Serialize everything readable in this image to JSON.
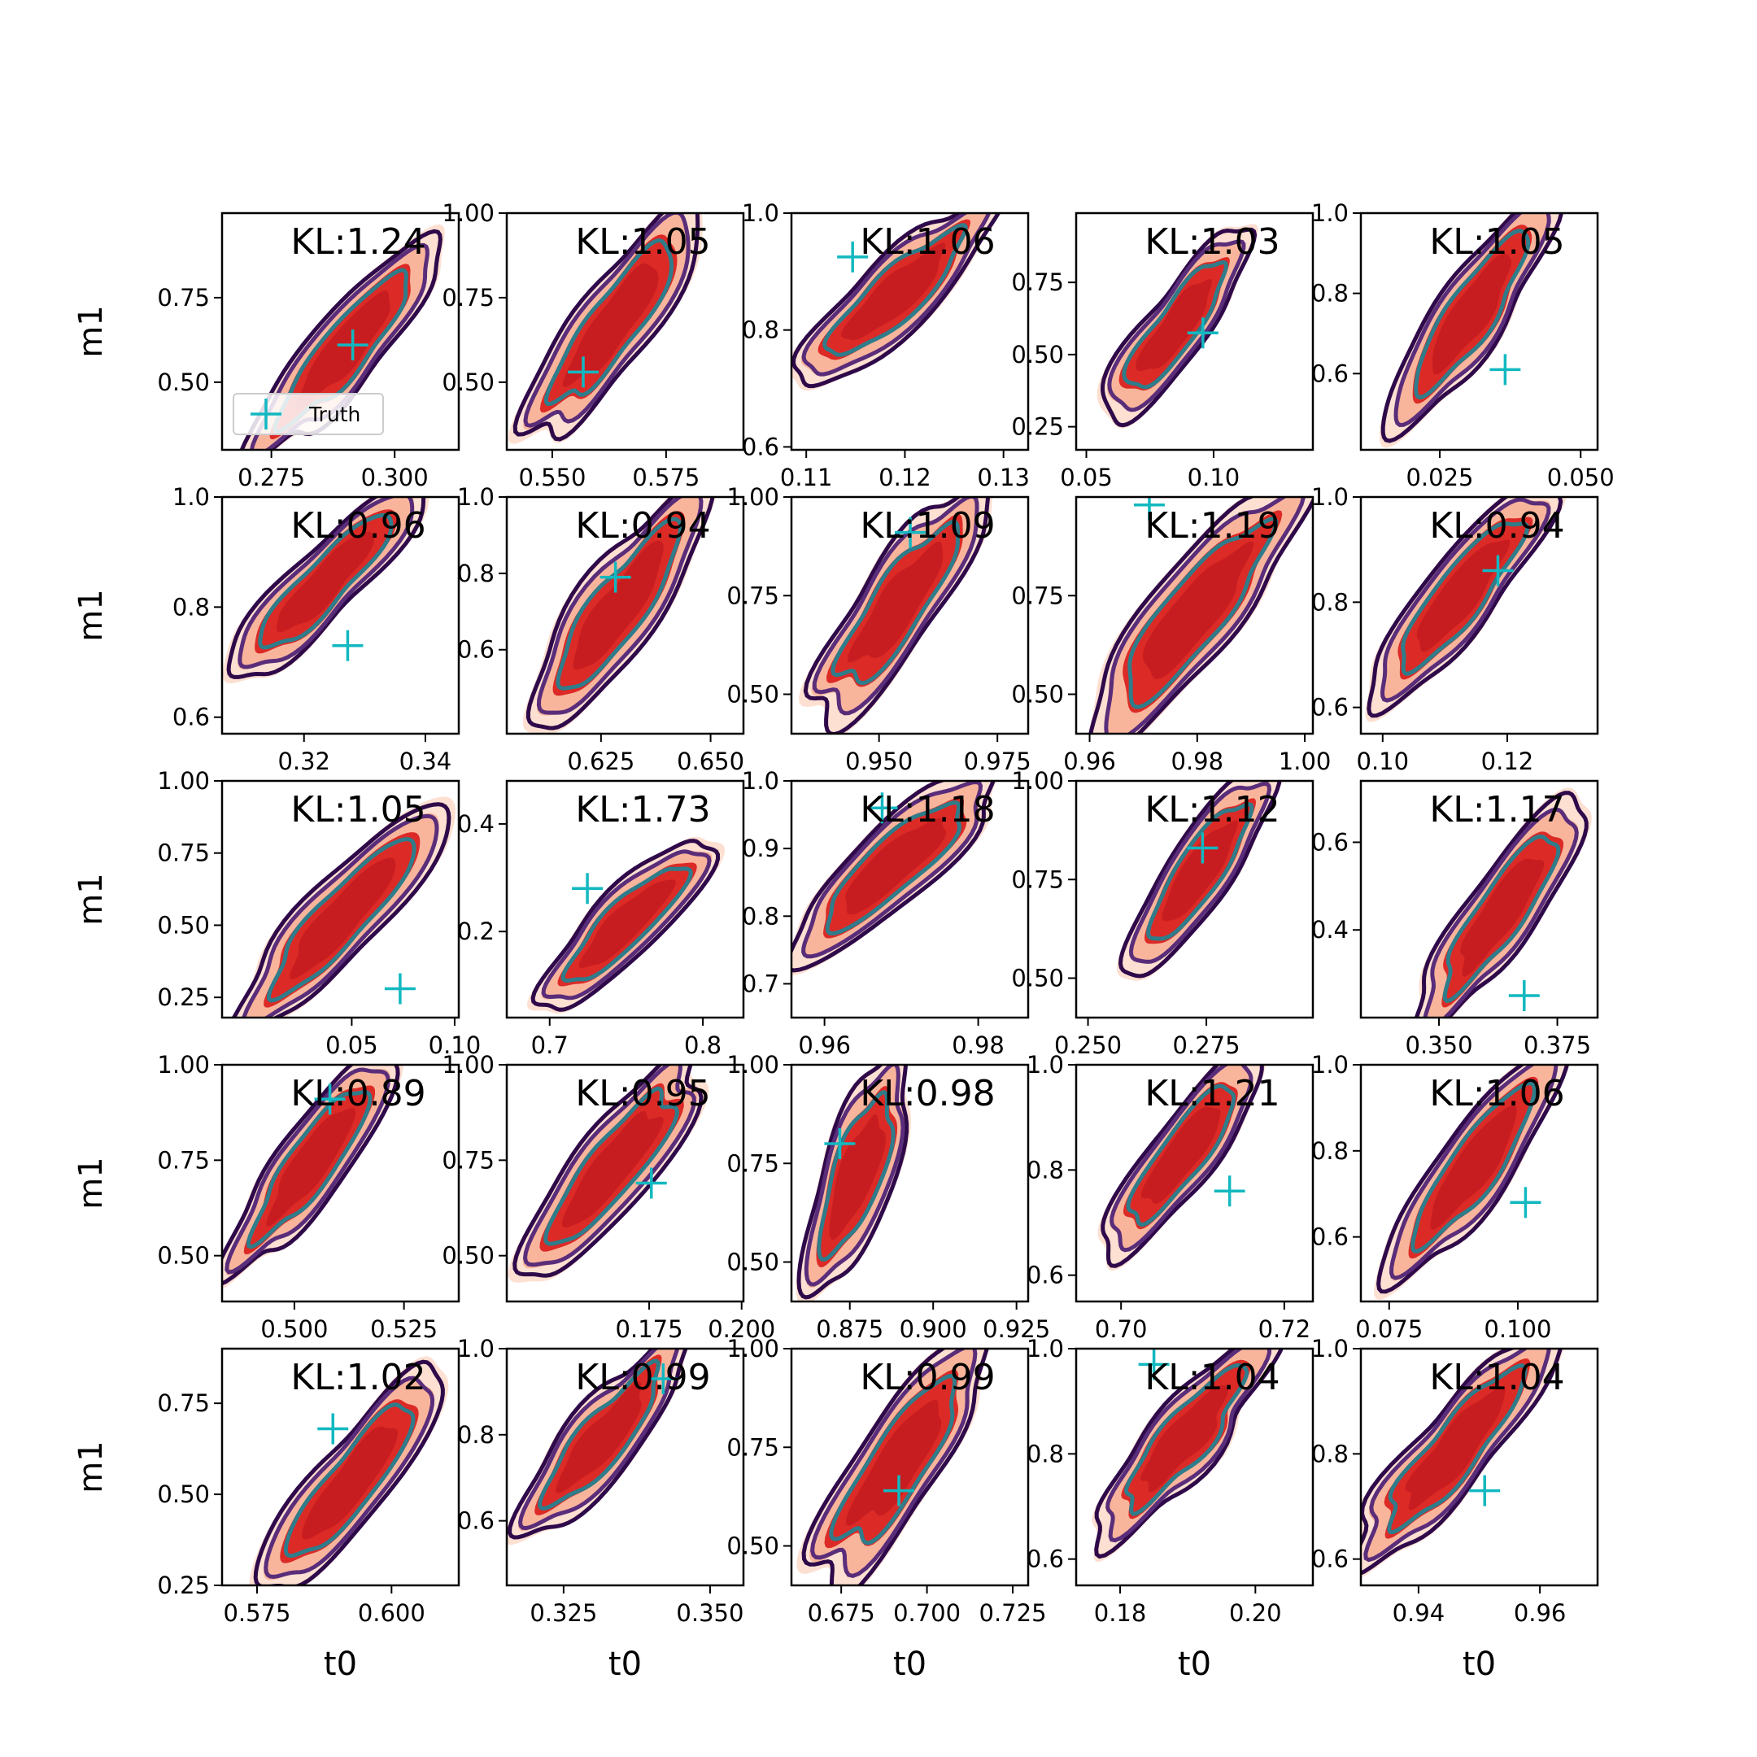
{
  "colors": {
    "fill_outer": "#fde0d2",
    "fill_mid": "#f9b59c",
    "fill_inner": "#dc2a26",
    "fill_core": "#c81d20",
    "line_outer": "#2f0a4a",
    "line_mid": "#5a2d7a",
    "line_inner": "#2f7c8a",
    "truth": "#12b8c0"
  },
  "chart_data": {
    "type": "contour-grid",
    "rows": 5,
    "cols": 5,
    "xlabel": "t0",
    "ylabel": "m1",
    "legend": {
      "label": "Truth",
      "placement": "lower-left",
      "marker": "+"
    },
    "panels": [
      {
        "kl": "KL:1.24",
        "xlim": [
          0.265,
          0.313
        ],
        "ylim": [
          0.3,
          1.0
        ],
        "xticks": [
          "0.275",
          "0.300"
        ],
        "xtick_vals": [
          0.275,
          0.3
        ],
        "yticks": [
          "0.50",
          "0.75"
        ],
        "ytick_vals": [
          0.5,
          0.75
        ],
        "truth": [
          0.2915,
          0.61
        ],
        "bounds": {
          "x": [
            0.274,
            0.306
          ],
          "y": [
            0.32,
            0.88
          ]
        }
      },
      {
        "kl": "KL:1.05",
        "xlim": [
          0.54,
          0.592
        ],
        "ylim": [
          0.3,
          1.0
        ],
        "xticks": [
          "0.550",
          "0.575"
        ],
        "xtick_vals": [
          0.55,
          0.575
        ],
        "yticks": [
          "0.50",
          "0.75",
          "1.00"
        ],
        "ytick_vals": [
          0.5,
          0.75,
          1.0
        ],
        "truth": [
          0.5568,
          0.53
        ],
        "bounds": {
          "x": [
            0.547,
            0.58
          ],
          "y": [
            0.36,
            0.99
          ]
        }
      },
      {
        "kl": "KL:1.06",
        "xlim": [
          0.1085,
          0.1325
        ],
        "ylim": [
          0.595,
          1.0
        ],
        "xticks": [
          "0.11",
          "0.12",
          "0.13"
        ],
        "xtick_vals": [
          0.11,
          0.12,
          0.13
        ],
        "yticks": [
          "0.6",
          "0.8",
          "1.0"
        ],
        "ytick_vals": [
          0.6,
          0.8,
          1.0
        ],
        "truth": [
          0.1147,
          0.925
        ],
        "bounds": {
          "x": [
            0.11,
            0.128
          ],
          "y": [
            0.72,
            1.0
          ]
        }
      },
      {
        "kl": "KL:1.03",
        "xlim": [
          0.046,
          0.139
        ],
        "ylim": [
          0.17,
          0.99
        ],
        "xticks": [
          "0.05",
          "0.10"
        ],
        "xtick_vals": [
          0.05,
          0.1
        ],
        "yticks": [
          "0.25",
          "0.50",
          "0.75"
        ],
        "ytick_vals": [
          0.25,
          0.5,
          0.75
        ],
        "truth": [
          0.0958,
          0.575
        ],
        "bounds": {
          "x": [
            0.06,
            0.11
          ],
          "y": [
            0.3,
            0.89
          ]
        }
      },
      {
        "kl": "KL:1.05",
        "xlim": [
          0.011,
          0.053
        ],
        "ylim": [
          0.41,
          1.0
        ],
        "xticks": [
          "0.025",
          "0.050"
        ],
        "xtick_vals": [
          0.025,
          0.05
        ],
        "yticks": [
          "0.6",
          "0.8",
          "1.0"
        ],
        "ytick_vals": [
          0.6,
          0.8,
          1.0
        ],
        "truth": [
          0.0366,
          0.61
        ],
        "bounds": {
          "x": [
            0.018,
            0.043
          ],
          "y": [
            0.5,
            1.0
          ]
        }
      },
      {
        "kl": "KL:0.96",
        "xlim": [
          0.3065,
          0.3455
        ],
        "ylim": [
          0.57,
          1.0
        ],
        "xticks": [
          "0.32",
          "0.34"
        ],
        "xtick_vals": [
          0.32,
          0.34
        ],
        "yticks": [
          "0.6",
          "0.8",
          "1.0"
        ],
        "ytick_vals": [
          0.6,
          0.8,
          1.0
        ],
        "truth": [
          0.3272,
          0.73
        ],
        "bounds": {
          "x": [
            0.31,
            0.337
          ],
          "y": [
            0.69,
            1.0
          ]
        }
      },
      {
        "kl": "KL:0.94",
        "xlim": [
          0.6035,
          0.6575
        ],
        "ylim": [
          0.38,
          1.0
        ],
        "xticks": [
          "0.625",
          "0.650"
        ],
        "xtick_vals": [
          0.625,
          0.65
        ],
        "yticks": [
          "0.6",
          "0.8",
          "1.0"
        ],
        "ytick_vals": [
          0.6,
          0.8,
          1.0
        ],
        "truth": [
          0.6283,
          0.79
        ],
        "bounds": {
          "x": [
            0.612,
            0.646
          ],
          "y": [
            0.42,
            1.0
          ]
        }
      },
      {
        "kl": "KL:1.09",
        "xlim": [
          0.9315,
          0.9815
        ],
        "ylim": [
          0.4,
          1.0
        ],
        "xticks": [
          "0.950",
          "0.975"
        ],
        "xtick_vals": [
          0.95,
          0.975
        ],
        "yticks": [
          "0.50",
          "0.75",
          "1.00"
        ],
        "ytick_vals": [
          0.5,
          0.75,
          1.0
        ],
        "truth": [
          0.9566,
          0.91
        ],
        "bounds": {
          "x": [
            0.938,
            0.97
          ],
          "y": [
            0.45,
            1.0
          ]
        }
      },
      {
        "kl": "KL:1.19",
        "xlim": [
          0.9575,
          1.0015
        ],
        "ylim": [
          0.4,
          1.0
        ],
        "xticks": [
          "0.96",
          "0.98",
          "1.00"
        ],
        "xtick_vals": [
          0.96,
          0.98,
          1.0
        ],
        "yticks": [
          "0.50",
          "0.75"
        ],
        "ytick_vals": [
          0.5,
          0.75
        ],
        "truth": [
          0.9711,
          0.98
        ],
        "bounds": {
          "x": [
            0.962,
            0.997
          ],
          "y": [
            0.41,
            1.0
          ]
        }
      },
      {
        "kl": "KL:0.94",
        "xlim": [
          0.0965,
          0.1345
        ],
        "ylim": [
          0.55,
          1.0
        ],
        "xticks": [
          "0.10",
          "0.12"
        ],
        "xtick_vals": [
          0.1,
          0.12
        ],
        "yticks": [
          "0.6",
          "0.8",
          "1.0"
        ],
        "ytick_vals": [
          0.6,
          0.8,
          1.0
        ],
        "truth": [
          0.1185,
          0.86
        ],
        "bounds": {
          "x": [
            0.1,
            0.125
          ],
          "y": [
            0.63,
            1.0
          ]
        }
      },
      {
        "kl": "KL:1.05",
        "xlim": [
          -0.013,
          0.102
        ],
        "ylim": [
          0.18,
          1.0
        ],
        "xticks": [
          "0.05",
          "0.10"
        ],
        "xtick_vals": [
          0.05,
          0.1
        ],
        "yticks": [
          "0.25",
          "0.50",
          "0.75",
          "1.00"
        ],
        "ytick_vals": [
          0.25,
          0.5,
          0.75,
          1.0
        ],
        "truth": [
          0.0735,
          0.28
        ],
        "bounds": {
          "x": [
            0.003,
            0.088
          ],
          "y": [
            0.19,
            0.87
          ]
        }
      },
      {
        "kl": "KL:1.73",
        "xlim": [
          0.672,
          0.8265
        ],
        "ylim": [
          0.04,
          0.48
        ],
        "xticks": [
          "0.7",
          "0.8"
        ],
        "xtick_vals": [
          0.7,
          0.8
        ],
        "yticks": [
          "0.2",
          "0.4"
        ],
        "ytick_vals": [
          0.2,
          0.4
        ],
        "truth": [
          0.7246,
          0.28
        ],
        "bounds": {
          "x": [
            0.7,
            0.8
          ],
          "y": [
            0.07,
            0.36
          ]
        }
      },
      {
        "kl": "KL:1.18",
        "xlim": [
          0.9557,
          0.9865
        ],
        "ylim": [
          0.65,
          1.0
        ],
        "xticks": [
          "0.96",
          "0.98"
        ],
        "xtick_vals": [
          0.96,
          0.98
        ],
        "yticks": [
          "0.7",
          "0.8",
          "0.9",
          "1.0"
        ],
        "ytick_vals": [
          0.7,
          0.8,
          0.9,
          1.0
        ],
        "truth": [
          0.9675,
          0.96
        ],
        "bounds": {
          "x": [
            0.957,
            0.981
          ],
          "y": [
            0.75,
            1.0
          ]
        }
      },
      {
        "kl": "KL:1.12",
        "xlim": [
          0.2475,
          0.2975
        ],
        "ylim": [
          0.4,
          1.0
        ],
        "xticks": [
          "0.250",
          "0.275"
        ],
        "xtick_vals": [
          0.25,
          0.275
        ],
        "yticks": [
          "0.50",
          "0.75",
          "1.00"
        ],
        "ytick_vals": [
          0.5,
          0.75,
          1.0
        ],
        "truth": [
          0.2742,
          0.83
        ],
        "bounds": {
          "x": [
            0.26,
            0.287
          ],
          "y": [
            0.54,
            1.0
          ]
        }
      },
      {
        "kl": "KL:1.17",
        "xlim": [
          0.3335,
          0.3835
        ],
        "ylim": [
          0.2,
          0.74
        ],
        "xticks": [
          "0.350",
          "0.375"
        ],
        "xtick_vals": [
          0.35,
          0.375
        ],
        "yticks": [
          "0.4",
          "0.6"
        ],
        "ytick_vals": [
          0.4,
          0.6
        ],
        "truth": [
          0.368,
          0.25
        ],
        "bounds": {
          "x": [
            0.348,
            0.378
          ],
          "y": [
            0.21,
            0.67
          ]
        }
      },
      {
        "kl": "KL:0.89",
        "xlim": [
          0.4835,
          0.5375
        ],
        "ylim": [
          0.38,
          1.0
        ],
        "xticks": [
          "0.500",
          "0.525"
        ],
        "xtick_vals": [
          0.5,
          0.525
        ],
        "yticks": [
          "0.50",
          "0.75",
          "1.00"
        ],
        "ytick_vals": [
          0.5,
          0.75,
          1.0
        ],
        "truth": [
          0.5081,
          0.91
        ],
        "bounds": {
          "x": [
            0.488,
            0.52
          ],
          "y": [
            0.49,
            1.0
          ]
        }
      },
      {
        "kl": "KL:0.95",
        "xlim": [
          0.1365,
          0.2005
        ],
        "ylim": [
          0.38,
          1.0
        ],
        "xticks": [
          "0.175",
          "0.200"
        ],
        "xtick_vals": [
          0.175,
          0.2
        ],
        "yticks": [
          "0.50",
          "0.75",
          "1.00"
        ],
        "ytick_vals": [
          0.5,
          0.75,
          1.0
        ],
        "truth": [
          0.1756,
          0.69
        ],
        "bounds": {
          "x": [
            0.144,
            0.186
          ],
          "y": [
            0.46,
            1.0
          ]
        }
      },
      {
        "kl": "KL:0.98",
        "xlim": [
          0.8575,
          0.9285
        ],
        "ylim": [
          0.4,
          1.0
        ],
        "xticks": [
          "0.875",
          "0.900",
          "0.925"
        ],
        "xtick_vals": [
          0.875,
          0.9,
          0.925
        ],
        "yticks": [
          "0.50",
          "0.75",
          "1.00"
        ],
        "ytick_vals": [
          0.5,
          0.75,
          1.0
        ],
        "truth": [
          0.872,
          0.8
        ],
        "bounds": {
          "x": [
            0.865,
            0.889
          ],
          "y": [
            0.44,
            1.0
          ]
        }
      },
      {
        "kl": "KL:1.21",
        "xlim": [
          0.6945,
          0.7235
        ],
        "ylim": [
          0.55,
          1.0
        ],
        "xticks": [
          "0.70",
          "0.72"
        ],
        "xtick_vals": [
          0.7,
          0.72
        ],
        "yticks": [
          "0.6",
          "0.8",
          "1.0"
        ],
        "ytick_vals": [
          0.6,
          0.8,
          1.0
        ],
        "truth": [
          0.7133,
          0.76
        ],
        "bounds": {
          "x": [
            0.699,
            0.716
          ],
          "y": [
            0.66,
            1.0
          ]
        }
      },
      {
        "kl": "KL:1.06",
        "xlim": [
          0.0695,
          0.1155
        ],
        "ylim": [
          0.45,
          1.0
        ],
        "xticks": [
          "0.075",
          "0.100"
        ],
        "xtick_vals": [
          0.075,
          0.1
        ],
        "yticks": [
          "0.6",
          "0.8",
          "1.0"
        ],
        "ytick_vals": [
          0.6,
          0.8,
          1.0
        ],
        "truth": [
          0.1015,
          0.68
        ],
        "bounds": {
          "x": [
            0.077,
            0.106
          ],
          "y": [
            0.53,
            1.0
          ]
        }
      },
      {
        "kl": "KL:1.02",
        "xlim": [
          0.5685,
          0.6125
        ],
        "ylim": [
          0.25,
          0.9
        ],
        "xticks": [
          "0.575",
          "0.600"
        ],
        "xtick_vals": [
          0.575,
          0.6
        ],
        "yticks": [
          "0.25",
          "0.50",
          "0.75"
        ],
        "ytick_vals": [
          0.25,
          0.5,
          0.75
        ],
        "truth": [
          0.5891,
          0.68
        ],
        "bounds": {
          "x": [
            0.578,
            0.607
          ],
          "y": [
            0.26,
            0.81
          ]
        }
      },
      {
        "kl": "KL:0.99",
        "xlim": [
          0.3153,
          0.3557
        ],
        "ylim": [
          0.45,
          1.0
        ],
        "xticks": [
          "0.325",
          "0.350"
        ],
        "xtick_vals": [
          0.325,
          0.35
        ],
        "yticks": [
          "0.6",
          "0.8",
          "1.0"
        ],
        "ytick_vals": [
          0.6,
          0.8,
          1.0
        ],
        "truth": [
          0.342,
          0.93
        ],
        "bounds": {
          "x": [
            0.319,
            0.344
          ],
          "y": [
            0.58,
            1.0
          ]
        }
      },
      {
        "kl": "KL:0.99",
        "xlim": [
          0.6605,
          0.7295
        ],
        "ylim": [
          0.4,
          1.0
        ],
        "xticks": [
          "0.675",
          "0.700",
          "0.725"
        ],
        "xtick_vals": [
          0.675,
          0.7,
          0.725
        ],
        "yticks": [
          "0.50",
          "0.75",
          "1.00"
        ],
        "ytick_vals": [
          0.5,
          0.75,
          1.0
        ],
        "truth": [
          0.6918,
          0.64
        ],
        "bounds": {
          "x": [
            0.669,
            0.714
          ],
          "y": [
            0.42,
            1.0
          ]
        }
      },
      {
        "kl": "KL:1.04",
        "xlim": [
          0.1735,
          0.2085
        ],
        "ylim": [
          0.55,
          1.0
        ],
        "xticks": [
          "0.18",
          "0.20"
        ],
        "xtick_vals": [
          0.18,
          0.2
        ],
        "yticks": [
          "0.6",
          "0.8",
          "1.0"
        ],
        "ytick_vals": [
          0.6,
          0.8,
          1.0
        ],
        "truth": [
          0.185,
          0.97
        ],
        "bounds": {
          "x": [
            0.178,
            0.201
          ],
          "y": [
            0.66,
            1.0
          ]
        }
      },
      {
        "kl": "KL:1.04",
        "xlim": [
          0.9305,
          0.9695
        ],
        "ylim": [
          0.55,
          1.0
        ],
        "xticks": [
          "0.94",
          "0.96"
        ],
        "xtick_vals": [
          0.94,
          0.96
        ],
        "yticks": [
          "0.6",
          "0.8",
          "1.0"
        ],
        "ytick_vals": [
          0.6,
          0.8,
          1.0
        ],
        "truth": [
          0.9509,
          0.73
        ],
        "bounds": {
          "x": [
            0.932,
            0.96
          ],
          "y": [
            0.62,
            1.0
          ]
        }
      }
    ]
  }
}
